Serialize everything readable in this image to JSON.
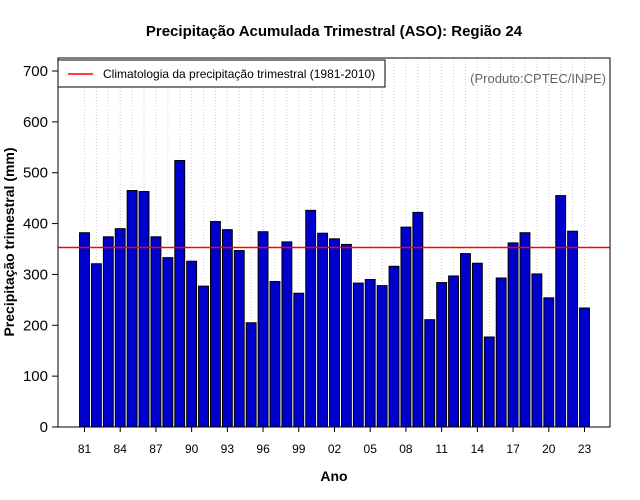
{
  "chart_data": {
    "type": "bar",
    "title": "Precipitação Acumulada Trimestral (ASO): Região 24",
    "xlabel": "Ano",
    "ylabel": "Precipitação trimestral (mm)",
    "ylim": [
      0,
      700
    ],
    "yticks": [
      0,
      100,
      200,
      300,
      400,
      500,
      600,
      700
    ],
    "grid": "vertical dotted",
    "legend_position": "top-left",
    "legend_entries": [
      "Climatologia da precipitação trimestral (1981-2010)"
    ],
    "credit": "(Produto:CPTEC/INPE)",
    "categories": [
      "1981",
      "1982",
      "1983",
      "1984",
      "1985",
      "1986",
      "1987",
      "1988",
      "1989",
      "1990",
      "1991",
      "1992",
      "1993",
      "1994",
      "1995",
      "1996",
      "1997",
      "1998",
      "1999",
      "2000",
      "2001",
      "2002",
      "2003",
      "2004",
      "2005",
      "2006",
      "2007",
      "2008",
      "2009",
      "2010",
      "2011",
      "2012",
      "2013",
      "2014",
      "2015",
      "2016",
      "2017",
      "2018",
      "2019",
      "2020",
      "2021",
      "2022",
      "2023"
    ],
    "tick_labels": [
      "81",
      "84",
      "87",
      "90",
      "93",
      "96",
      "99",
      "02",
      "05",
      "08",
      "11",
      "14",
      "17",
      "20",
      "23"
    ],
    "tick_every": 3,
    "values": [
      382,
      321,
      374,
      390,
      465,
      463,
      374,
      333,
      524,
      326,
      277,
      404,
      388,
      347,
      205,
      384,
      286,
      364,
      263,
      426,
      381,
      370,
      359,
      283,
      290,
      278,
      316,
      393,
      422,
      211,
      284,
      297,
      341,
      322,
      177,
      293,
      362,
      382,
      301,
      254,
      455,
      385,
      234
    ],
    "climatology": 353,
    "colors": {
      "bar_fill": "#0000CD",
      "bar_stroke": "#000000",
      "climatology_line": "#FF0000",
      "grid": "#CCCCCC"
    }
  }
}
